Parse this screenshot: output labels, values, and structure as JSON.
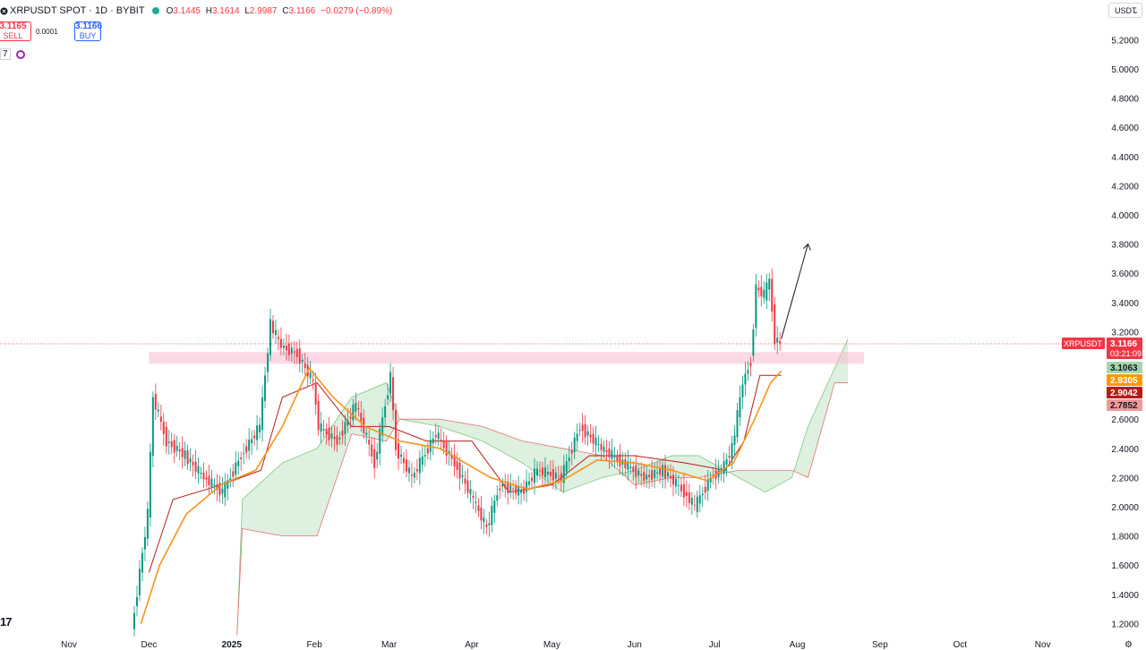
{
  "header": {
    "title": "XRPUSDT SPOT · 1D · BYBIT",
    "ohlc": [
      {
        "k": "O",
        "v": "3.1445"
      },
      {
        "k": "H",
        "v": "3.1614"
      },
      {
        "k": "L",
        "v": "2.9987"
      },
      {
        "k": "C",
        "v": "3.1166"
      }
    ],
    "change": "−0.0279 (−0.89%)"
  },
  "trade": {
    "sell_price": "3.1165",
    "sell_label": "SELL",
    "spread": "0.0001",
    "buy_price": "3.1166",
    "buy_label": "BUY"
  },
  "indicators_count": "7",
  "currency": "USDT",
  "logo_text": "17",
  "chart_data": {
    "type": "line",
    "symbol": "XRPUSDT",
    "price_axis": {
      "ticks": [
        "5.2000",
        "5.0000",
        "4.8000",
        "4.6000",
        "4.4000",
        "4.2000",
        "4.0000",
        "3.8000",
        "3.6000",
        "3.4000",
        "3.2000",
        "2.6000",
        "2.4000",
        "2.2000",
        "2.0000",
        "1.8000",
        "1.6000",
        "1.4000",
        "1.2000"
      ]
    },
    "time_axis": {
      "labels": [
        {
          "label": "Nov",
          "date": "2024-11-01"
        },
        {
          "label": "Dec",
          "date": "2024-12-01"
        },
        {
          "label": "2025",
          "date": "2025-01-01"
        },
        {
          "label": "Feb",
          "date": "2025-02-01"
        },
        {
          "label": "Mar",
          "date": "2025-03-01"
        },
        {
          "label": "Apr",
          "date": "2025-04-01"
        },
        {
          "label": "May",
          "date": "2025-05-01"
        },
        {
          "label": "Jun",
          "date": "2025-06-01"
        },
        {
          "label": "Jul",
          "date": "2025-07-01"
        },
        {
          "label": "Aug",
          "date": "2025-08-01"
        },
        {
          "label": "Sep",
          "date": "2025-09-01"
        },
        {
          "label": "Oct",
          "date": "2025-10-01"
        },
        {
          "label": "Nov",
          "date": "2025-11-01"
        }
      ]
    },
    "price_labels": [
      {
        "name": "XRPUSDT",
        "text": "3.1166",
        "sub": "03:21:09",
        "price": 3.1166,
        "color": "#f23645"
      },
      {
        "text": "3.1063",
        "price": 3.1063,
        "color": "#a5d6a7"
      },
      {
        "text": "2.9305",
        "price": 2.9305,
        "color": "#ff9800"
      },
      {
        "text": "2.9042",
        "price": 2.9042,
        "color": "#b71c1c"
      },
      {
        "text": "2.7852",
        "price": 2.7852,
        "color": "#ef9a9a"
      }
    ],
    "candles": [
      {
        "date": "2024-11-25",
        "close": 1.15
      },
      {
        "date": "2024-12-01",
        "close": 1.95
      },
      {
        "date": "2024-12-03",
        "close": 2.75
      },
      {
        "date": "2024-12-08",
        "close": 2.45
      },
      {
        "date": "2024-12-15",
        "close": 2.35
      },
      {
        "date": "2024-12-22",
        "close": 2.2
      },
      {
        "date": "2024-12-29",
        "close": 2.1
      },
      {
        "date": "2025-01-05",
        "close": 2.35
      },
      {
        "date": "2025-01-12",
        "close": 2.55
      },
      {
        "date": "2025-01-16",
        "close": 3.25
      },
      {
        "date": "2025-01-20",
        "close": 3.1
      },
      {
        "date": "2025-01-26",
        "close": 3.05
      },
      {
        "date": "2025-02-01",
        "close": 2.85
      },
      {
        "date": "2025-02-03",
        "close": 2.55
      },
      {
        "date": "2025-02-10",
        "close": 2.45
      },
      {
        "date": "2025-02-17",
        "close": 2.7
      },
      {
        "date": "2025-02-24",
        "close": 2.3
      },
      {
        "date": "2025-03-02",
        "close": 2.9
      },
      {
        "date": "2025-03-04",
        "close": 2.4
      },
      {
        "date": "2025-03-10",
        "close": 2.2
      },
      {
        "date": "2025-03-19",
        "close": 2.5
      },
      {
        "date": "2025-03-26",
        "close": 2.3
      },
      {
        "date": "2025-04-02",
        "close": 2.05
      },
      {
        "date": "2025-04-07",
        "close": 1.85
      },
      {
        "date": "2025-04-12",
        "close": 2.15
      },
      {
        "date": "2025-04-20",
        "close": 2.1
      },
      {
        "date": "2025-04-26",
        "close": 2.25
      },
      {
        "date": "2025-05-05",
        "close": 2.2
      },
      {
        "date": "2025-05-12",
        "close": 2.55
      },
      {
        "date": "2025-05-20",
        "close": 2.4
      },
      {
        "date": "2025-05-28",
        "close": 2.3
      },
      {
        "date": "2025-06-05",
        "close": 2.2
      },
      {
        "date": "2025-06-12",
        "close": 2.25
      },
      {
        "date": "2025-06-20",
        "close": 2.1
      },
      {
        "date": "2025-06-24",
        "close": 2.0
      },
      {
        "date": "2025-06-30",
        "close": 2.2
      },
      {
        "date": "2025-07-04",
        "close": 2.25
      },
      {
        "date": "2025-07-08",
        "close": 2.4
      },
      {
        "date": "2025-07-12",
        "close": 2.85
      },
      {
        "date": "2025-07-15",
        "close": 3.0
      },
      {
        "date": "2025-07-17",
        "close": 3.5
      },
      {
        "date": "2025-07-20",
        "close": 3.45
      },
      {
        "date": "2025-07-22",
        "close": 3.55
      },
      {
        "date": "2025-07-24",
        "close": 3.15
      },
      {
        "date": "2025-07-26",
        "close": 3.12
      }
    ],
    "ema_line": [
      {
        "date": "2024-11-28",
        "value": 1.2
      },
      {
        "date": "2024-12-05",
        "value": 1.6
      },
      {
        "date": "2024-12-15",
        "value": 1.95
      },
      {
        "date": "2024-12-28",
        "value": 2.15
      },
      {
        "date": "2025-01-10",
        "value": 2.25
      },
      {
        "date": "2025-01-20",
        "value": 2.55
      },
      {
        "date": "2025-01-30",
        "value": 2.95
      },
      {
        "date": "2025-02-08",
        "value": 2.75
      },
      {
        "date": "2025-02-20",
        "value": 2.55
      },
      {
        "date": "2025-03-05",
        "value": 2.45
      },
      {
        "date": "2025-03-20",
        "value": 2.4
      },
      {
        "date": "2025-04-08",
        "value": 2.2
      },
      {
        "date": "2025-04-22",
        "value": 2.12
      },
      {
        "date": "2025-05-05",
        "value": 2.18
      },
      {
        "date": "2025-05-18",
        "value": 2.32
      },
      {
        "date": "2025-06-01",
        "value": 2.3
      },
      {
        "date": "2025-06-15",
        "value": 2.25
      },
      {
        "date": "2025-06-28",
        "value": 2.18
      },
      {
        "date": "2025-07-08",
        "value": 2.3
      },
      {
        "date": "2025-07-16",
        "value": 2.6
      },
      {
        "date": "2025-07-22",
        "value": 2.85
      },
      {
        "date": "2025-07-26",
        "value": 2.93
      }
    ],
    "baseline": [
      {
        "date": "2024-12-01",
        "value": 1.55
      },
      {
        "date": "2024-12-10",
        "value": 2.05
      },
      {
        "date": "2024-12-28",
        "value": 2.15
      },
      {
        "date": "2025-01-12",
        "value": 2.25
      },
      {
        "date": "2025-01-20",
        "value": 2.75
      },
      {
        "date": "2025-02-02",
        "value": 2.85
      },
      {
        "date": "2025-02-15",
        "value": 2.55
      },
      {
        "date": "2025-03-01",
        "value": 2.55
      },
      {
        "date": "2025-03-15",
        "value": 2.45
      },
      {
        "date": "2025-04-01",
        "value": 2.45
      },
      {
        "date": "2025-04-15",
        "value": 2.1
      },
      {
        "date": "2025-05-01",
        "value": 2.15
      },
      {
        "date": "2025-05-15",
        "value": 2.35
      },
      {
        "date": "2025-06-01",
        "value": 2.35
      },
      {
        "date": "2025-06-20",
        "value": 2.3
      },
      {
        "date": "2025-07-05",
        "value": 2.25
      },
      {
        "date": "2025-07-12",
        "value": 2.45
      },
      {
        "date": "2025-07-18",
        "value": 2.9
      },
      {
        "date": "2025-07-26",
        "value": 2.9
      }
    ],
    "cloud": [
      {
        "date": "2025-01-03",
        "a": 1.12,
        "b": 1.12
      },
      {
        "date": "2025-01-05",
        "a": 2.05,
        "b": 1.85
      },
      {
        "date": "2025-01-20",
        "a": 2.3,
        "b": 1.8
      },
      {
        "date": "2025-02-02",
        "a": 2.4,
        "b": 1.8
      },
      {
        "date": "2025-02-15",
        "a": 2.75,
        "b": 2.5
      },
      {
        "date": "2025-02-28",
        "a": 2.85,
        "b": 2.45
      },
      {
        "date": "2025-03-05",
        "a": 2.6,
        "b": 2.6
      },
      {
        "date": "2025-03-20",
        "a": 2.55,
        "b": 2.6
      },
      {
        "date": "2025-04-05",
        "a": 2.45,
        "b": 2.55
      },
      {
        "date": "2025-04-20",
        "a": 2.3,
        "b": 2.45
      },
      {
        "date": "2025-05-05",
        "a": 2.1,
        "b": 2.4
      },
      {
        "date": "2025-05-20",
        "a": 2.2,
        "b": 2.35
      },
      {
        "date": "2025-06-01",
        "a": 2.25,
        "b": 2.15
      },
      {
        "date": "2025-06-15",
        "a": 2.35,
        "b": 2.2
      },
      {
        "date": "2025-06-25",
        "a": 2.35,
        "b": 2.2
      },
      {
        "date": "2025-07-10",
        "a": 2.2,
        "b": 2.25
      },
      {
        "date": "2025-07-20",
        "a": 2.1,
        "b": 2.25
      },
      {
        "date": "2025-07-30",
        "a": 2.2,
        "b": 2.25
      },
      {
        "date": "2025-08-05",
        "a": 2.55,
        "b": 2.2
      },
      {
        "date": "2025-08-15",
        "a": 2.95,
        "b": 2.85
      },
      {
        "date": "2025-08-20",
        "a": 3.15,
        "b": 2.85
      }
    ],
    "resistance_zone": {
      "from": "2024-12-01",
      "to": "2025-08-26",
      "low": 2.98,
      "high": 3.06
    },
    "arrow": {
      "from": {
        "date": "2025-07-26",
        "value": 3.15
      },
      "to": {
        "date": "2025-08-05",
        "value": 3.8
      }
    },
    "current_price": 3.1166
  }
}
